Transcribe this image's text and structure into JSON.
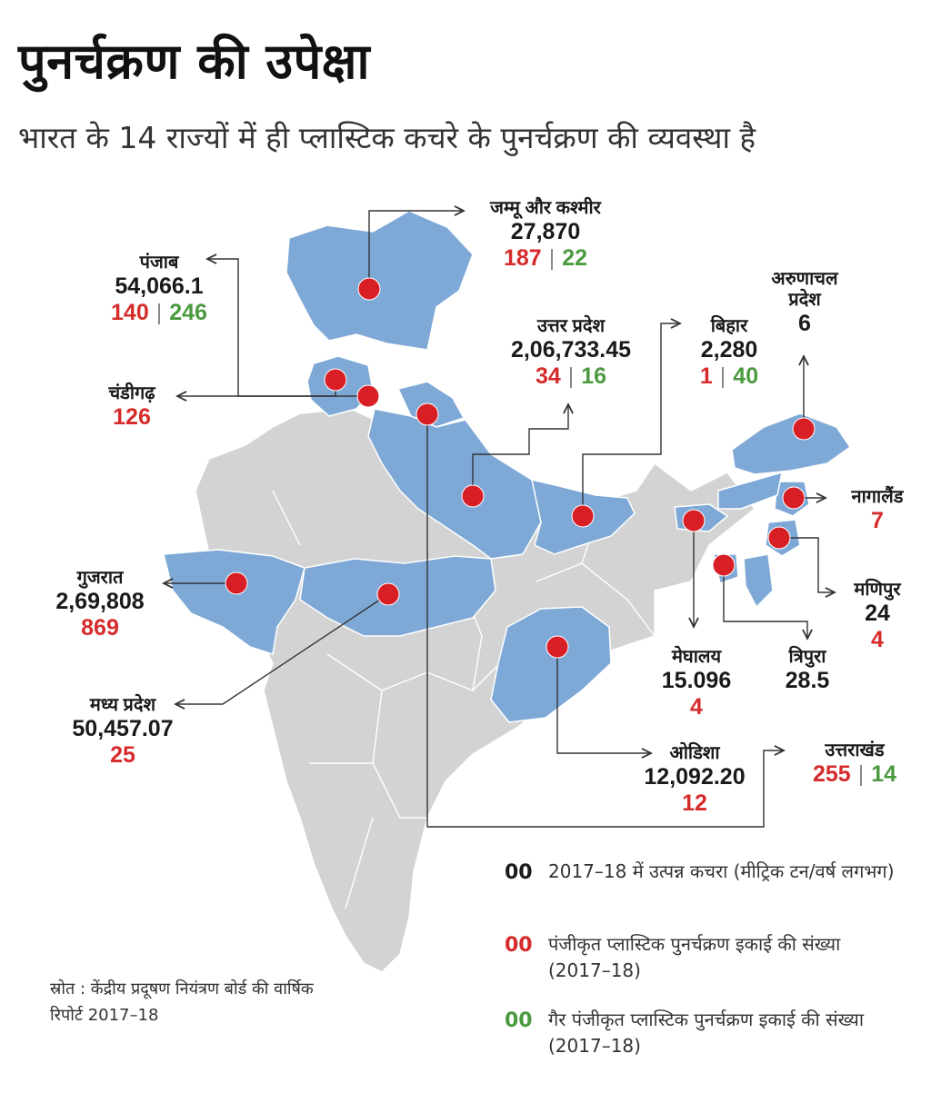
{
  "title": "पुनर्चक्रण की उपेक्षा",
  "subtitle": "भारत के 14 राज्यों में ही प्लास्टिक कचरे के पुनर्चक्रण की व्यवस्था है",
  "colors": {
    "highlight_state": "#7ea9d6",
    "other_state": "#d3d3d3",
    "marker": "#d91f26",
    "registered_count": "#d62b2b",
    "unregistered_count": "#4b9a3f"
  },
  "states": [
    {
      "name": "जम्मू और कश्मीर",
      "waste": "27,870",
      "registered": "187",
      "unregistered": "22"
    },
    {
      "name": "पंजाब",
      "waste": "54,066.1",
      "registered": "140",
      "unregistered": "246"
    },
    {
      "name": "चंडीगढ़",
      "waste": "",
      "registered": "126",
      "unregistered": ""
    },
    {
      "name": "उत्तर प्रदेश",
      "waste": "2,06,733.45",
      "registered": "34",
      "unregistered": "16"
    },
    {
      "name": "बिहार",
      "waste": "2,280",
      "registered": "1",
      "unregistered": "40"
    },
    {
      "name": "अरुणाचल प्रदेश",
      "name_line1": "अरुणाचल",
      "name_line2": "प्रदेश",
      "waste": "6",
      "registered": "",
      "unregistered": ""
    },
    {
      "name": "नागालैंड",
      "waste": "",
      "registered": "7",
      "unregistered": ""
    },
    {
      "name": "गुजरात",
      "waste": "2,69,808",
      "registered": "869",
      "unregistered": ""
    },
    {
      "name": "मणिपुर",
      "waste": "24",
      "registered": "4",
      "unregistered": ""
    },
    {
      "name": "मेघालय",
      "waste": "15.096",
      "registered": "4",
      "unregistered": ""
    },
    {
      "name": "त्रिपुरा",
      "waste": "28.5",
      "registered": "",
      "unregistered": ""
    },
    {
      "name": "मध्य प्रदेश",
      "waste": "50,457.07",
      "registered": "25",
      "unregistered": ""
    },
    {
      "name": "ओडिशा",
      "waste": "12,092.20",
      "registered": "12",
      "unregistered": ""
    },
    {
      "name": "उत्तराखंड",
      "waste": "",
      "registered": "255",
      "unregistered": "14"
    }
  ],
  "legend": [
    {
      "key": "00",
      "text": "2017–18 में उत्पन्न कचरा  (मीट्रिक टन/वर्ष लगभग)"
    },
    {
      "key": "00",
      "text": "पंजीकृत प्लास्टिक पुनर्चक्रण इकाई की संख्या (2017–18)"
    },
    {
      "key": "00",
      "text": "गैर पंजीकृत प्लास्टिक पुनर्चक्रण इकाई की संख्या (2017–18)"
    }
  ],
  "source": "स्रोत : केंद्रीय प्रदूषण नियंत्रण बोर्ड की वार्षिक रिपोर्ट 2017–18"
}
